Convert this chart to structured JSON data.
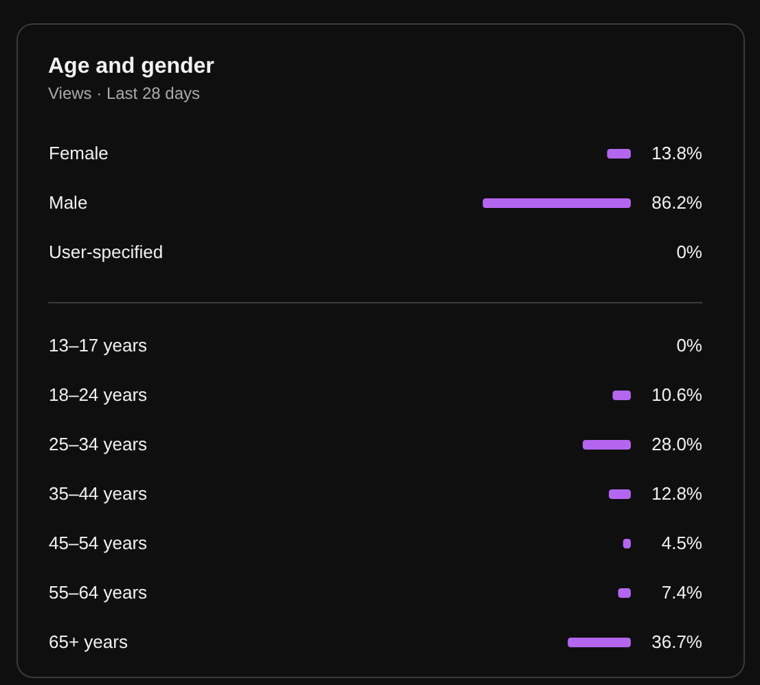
{
  "chart_data": [
    {
      "type": "bar",
      "title": "Age and gender",
      "subtitle": "Views · Last 28 days",
      "orientation": "horizontal",
      "categories": [
        "Female",
        "Male",
        "User-specified"
      ],
      "values": [
        13.8,
        86.2,
        0
      ],
      "value_labels": [
        "13.8%",
        "86.2%",
        "0%"
      ],
      "color": "#b466f0"
    },
    {
      "type": "bar",
      "orientation": "horizontal",
      "categories": [
        "13–17 years",
        "18–24 years",
        "25–34 years",
        "35–44 years",
        "45–54 years",
        "55–64 years",
        "65+ years"
      ],
      "values": [
        0,
        10.6,
        28.0,
        12.8,
        4.5,
        7.4,
        36.7
      ],
      "value_labels": [
        "0%",
        "10.6%",
        "28.0%",
        "12.8%",
        "4.5%",
        "7.4%",
        "36.7%"
      ],
      "color": "#b466f0"
    }
  ]
}
